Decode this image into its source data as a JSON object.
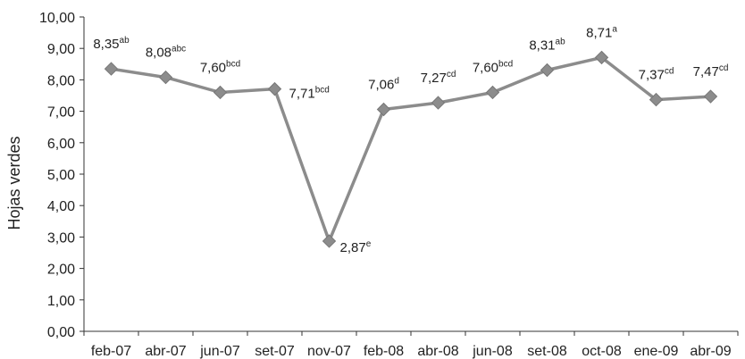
{
  "chart_data": {
    "type": "line",
    "title": "",
    "xlabel": "",
    "ylabel": "Hojas verdes",
    "ylim": [
      0,
      10
    ],
    "ytick_labels": [
      "0,00",
      "1,00",
      "2,00",
      "3,00",
      "4,00",
      "5,00",
      "6,00",
      "7,00",
      "8,00",
      "9,00",
      "10,00"
    ],
    "categories": [
      "feb-07",
      "abr-07",
      "jun-07",
      "set-07",
      "nov-07",
      "feb-08",
      "abr-08",
      "jun-08",
      "set-08",
      "oct-08",
      "ene-09",
      "abr-09"
    ],
    "series": [
      {
        "values": [
          8.35,
          8.08,
          7.6,
          7.71,
          2.87,
          7.06,
          7.27,
          7.6,
          8.31,
          8.71,
          7.37,
          7.47
        ]
      }
    ],
    "data_labels": [
      "8,35",
      "8,08",
      "7,60",
      "7,71",
      "2,87",
      "7,06",
      "7,27",
      "7,60",
      "8,31",
      "8,71",
      "7,37",
      "7,47"
    ],
    "significance_letters": [
      "ab",
      "abc",
      "bcd",
      "bcd",
      "e",
      "d",
      "cd",
      "bcd",
      "ab",
      "a",
      "cd",
      "cd"
    ],
    "grid": false,
    "legend": "none",
    "colors": {
      "line": "#8c8c8c",
      "marker": "#8c8c8c",
      "axis": "#333333",
      "text": "#222222"
    }
  }
}
